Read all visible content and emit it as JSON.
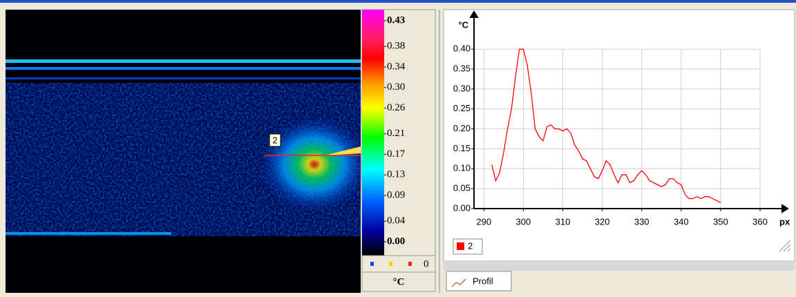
{
  "image": {
    "marker_label": "2"
  },
  "colorbar": {
    "lim": [
      0,
      0.43
    ],
    "ticks": [
      0.43,
      0.38,
      0.34,
      {
        "value": 0.3,
        "label": "0.30"
      },
      0.26,
      0.21,
      0.17,
      0.13,
      0.09,
      0.04,
      {
        "value": 0,
        "label": "0.00"
      }
    ],
    "count": "0",
    "unit": "°C"
  },
  "chart_data": {
    "type": "line",
    "ylabel": "°C",
    "xlabel": "px",
    "x": [
      292,
      293,
      294,
      295,
      296,
      297,
      298,
      299,
      300,
      301,
      302,
      303,
      304,
      305,
      306,
      307,
      308,
      309,
      310,
      311,
      312,
      313,
      314,
      315,
      316,
      317,
      318,
      319,
      320,
      321,
      322,
      323,
      324,
      325,
      326,
      327,
      328,
      329,
      330,
      331,
      332,
      333,
      334,
      335,
      336,
      337,
      338,
      339,
      340,
      341,
      342,
      343,
      344,
      345,
      346,
      347,
      348,
      349,
      350
    ],
    "series": [
      {
        "name": "2",
        "color": "#ff0000",
        "values": [
          0.11,
          0.07,
          0.09,
          0.14,
          0.2,
          0.25,
          0.33,
          0.4,
          0.4,
          0.36,
          0.29,
          0.2,
          0.18,
          0.17,
          0.205,
          0.21,
          0.2,
          0.2,
          0.195,
          0.2,
          0.19,
          0.16,
          0.145,
          0.125,
          0.12,
          0.1,
          0.08,
          0.075,
          0.095,
          0.12,
          0.11,
          0.085,
          0.065,
          0.085,
          0.085,
          0.065,
          0.07,
          0.085,
          0.095,
          0.085,
          0.07,
          0.065,
          0.06,
          0.055,
          0.06,
          0.075,
          0.075,
          0.065,
          0.06,
          0.035,
          0.025,
          0.025,
          0.03,
          0.025,
          0.03,
          0.03,
          0.025,
          0.02,
          0.015
        ]
      }
    ],
    "xlim": [
      287.5,
      367
    ],
    "ylim": [
      0,
      0.48
    ],
    "xticks": [
      290,
      300,
      310,
      320,
      330,
      340,
      350,
      360
    ],
    "yticks": [
      {
        "value": 0,
        "label": "0.00"
      },
      0.05,
      {
        "value": 0.1,
        "label": "0.10"
      },
      0.15,
      {
        "value": 0.2,
        "label": "0.20"
      },
      0.25,
      {
        "value": 0.3,
        "label": "0.30"
      },
      0.35,
      {
        "value": 0.4,
        "label": "0.40"
      }
    ],
    "grid": true
  },
  "tab": {
    "label": "Profil"
  }
}
